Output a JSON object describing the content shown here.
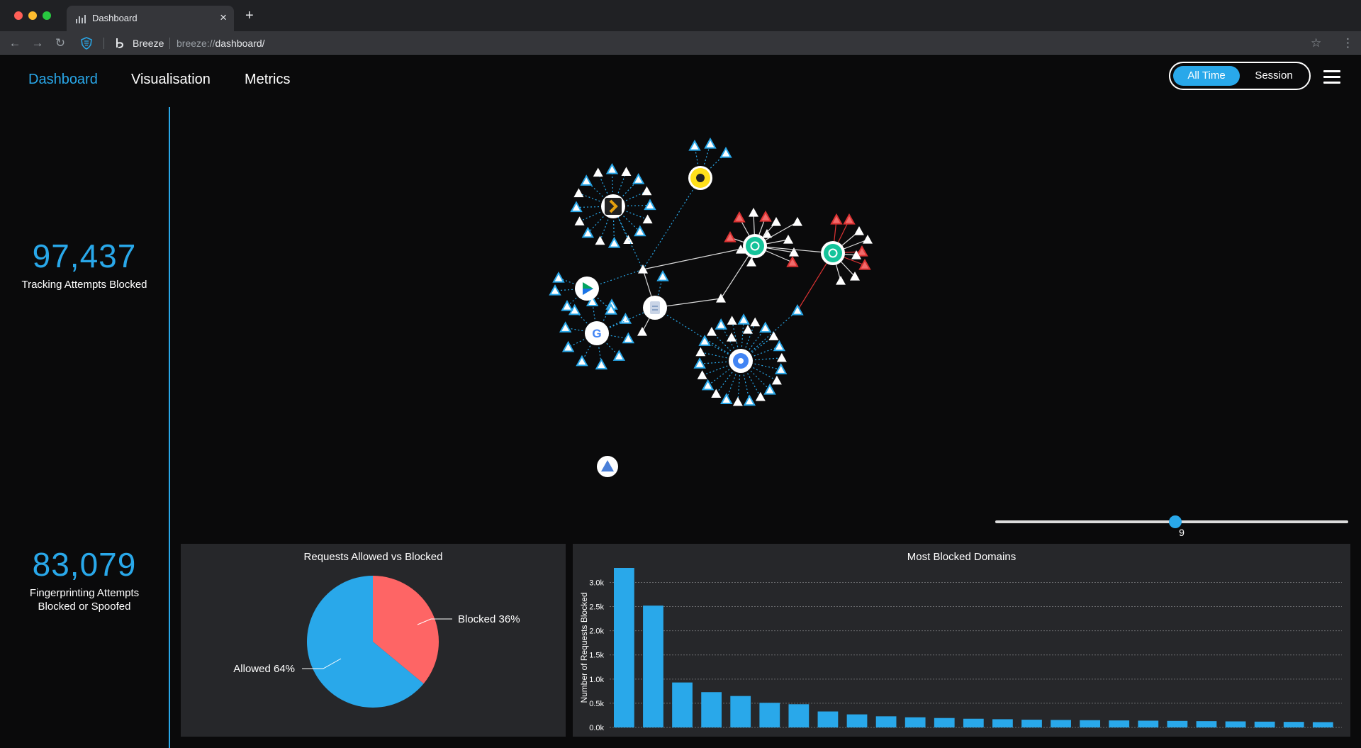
{
  "browser": {
    "tab_title": "Dashboard",
    "new_tab": "+",
    "close": "×",
    "site_name": "Breeze",
    "url_scheme": "breeze://",
    "url_path": "dashboard/",
    "colors": {
      "close": "#ff5f57",
      "minimize": "#febc2e",
      "maximize": "#28c840"
    }
  },
  "nav": {
    "dashboard": "Dashboard",
    "visualisation": "Visualisation",
    "metrics": "Metrics"
  },
  "toggle": {
    "all_time": "All Time",
    "session": "Session",
    "selected": "all_time"
  },
  "stats": {
    "tracking_value": "97,437",
    "tracking_label": "Tracking Attempts Blocked",
    "fingerprint_value": "83,079",
    "fingerprint_label_1": "Fingerprinting Attempts",
    "fingerprint_label_2": "Blocked or Spoofed"
  },
  "slider": {
    "value": "9",
    "fraction": 0.51
  },
  "graph_icons": [
    "plex-icon",
    "mailchimp-icon",
    "google-play-icon",
    "google-icon",
    "grammarly-icon",
    "grammarly-icon",
    "google-docs-icon",
    "gear-icon",
    "app-icon"
  ],
  "colors": {
    "accent": "#29a8ea",
    "blocked": "#fe6565",
    "panel": "#26272a",
    "danger_edge": "#d33"
  },
  "chart_data": [
    {
      "type": "pie",
      "title": "Requests Allowed vs Blocked",
      "slices": [
        {
          "label": "Blocked 36%",
          "value": 36,
          "color": "#fe6565"
        },
        {
          "label": "Allowed 64%",
          "value": 64,
          "color": "#29a8ea"
        }
      ]
    },
    {
      "type": "bar",
      "title": "Most Blocked Domains",
      "ylabel": "Number of Requests Blocked",
      "yticks": [
        "0.0k",
        "0.5k",
        "1.0k",
        "1.5k",
        "2.0k",
        "2.5k",
        "3.0k"
      ],
      "ylim": [
        0,
        3300
      ],
      "grid": true,
      "values": [
        3300,
        2520,
        930,
        730,
        650,
        510,
        480,
        330,
        270,
        230,
        210,
        195,
        180,
        170,
        160,
        155,
        150,
        145,
        140,
        135,
        130,
        125,
        120,
        115,
        110
      ]
    }
  ]
}
